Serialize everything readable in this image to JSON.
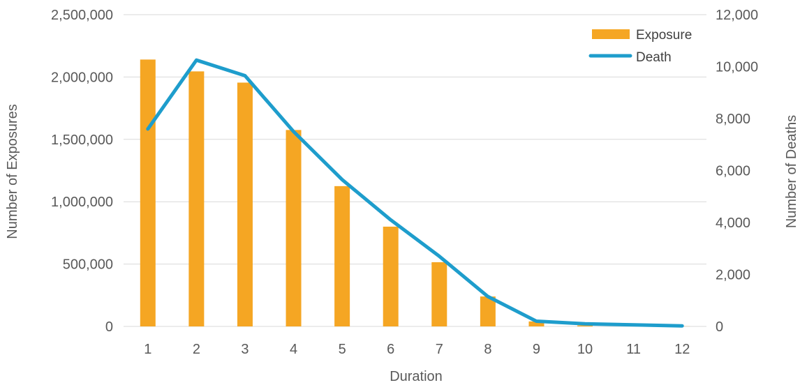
{
  "chart_data": {
    "type": "bar",
    "title": "",
    "xlabel": "Duration",
    "ylabel": "Number of Exposures",
    "y2label": "Number of Deaths",
    "categories": [
      "1",
      "2",
      "3",
      "4",
      "5",
      "6",
      "7",
      "8",
      "9",
      "10",
      "11",
      "12"
    ],
    "ylim": [
      0,
      2500000
    ],
    "y2lim": [
      0,
      12000
    ],
    "yticks": [
      "0",
      "500,000",
      "1,000,000",
      "1,500,000",
      "2,000,000",
      "2,500,000"
    ],
    "y2ticks": [
      "0",
      "2,000",
      "4,000",
      "6,000",
      "8,000",
      "10,000",
      "12,000"
    ],
    "grid": true,
    "legend": "top-right",
    "series": [
      {
        "name": "Exposure",
        "type": "bar",
        "axis": "left",
        "color": "#F5A623",
        "values": [
          2140000,
          2045000,
          1955000,
          1575000,
          1125000,
          800000,
          515000,
          240000,
          40000,
          8000,
          3000,
          1000
        ]
      },
      {
        "name": "Death",
        "type": "line",
        "axis": "right",
        "color": "#1E9DCC",
        "values": [
          7600,
          10250,
          9650,
          7500,
          5650,
          4100,
          2700,
          1150,
          200,
          100,
          60,
          20
        ]
      }
    ]
  }
}
